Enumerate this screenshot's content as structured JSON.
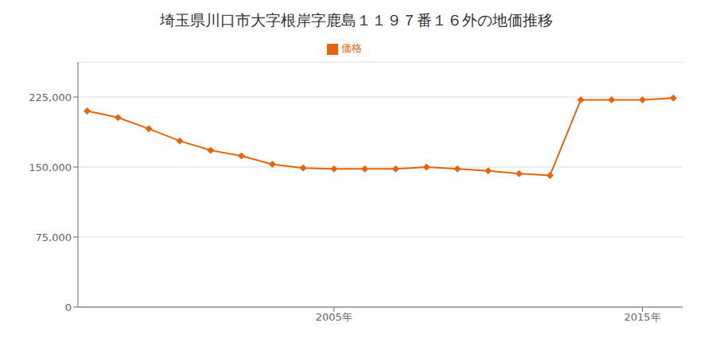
{
  "chart_data": {
    "type": "line",
    "title": "埼玉県川口市大字根岸字鹿島１１９７番１６外の地価推移",
    "x": [
      1997,
      1998,
      1999,
      2000,
      2001,
      2002,
      2003,
      2004,
      2005,
      2006,
      2007,
      2008,
      2009,
      2010,
      2011,
      2012,
      2013,
      2014,
      2015,
      2016
    ],
    "series": [
      {
        "name": "価格",
        "color": "#E8640A",
        "marker": "diamond",
        "values": [
          210000,
          203000,
          191000,
          178000,
          168000,
          162000,
          153000,
          149000,
          148000,
          148000,
          148000,
          150000,
          148000,
          146000,
          143000,
          141000,
          222000,
          222000,
          222000,
          224000
        ]
      }
    ],
    "xlim": [
      1996.7,
      2016.3
    ],
    "xticks": [
      {
        "value": 2005,
        "label": "2005年"
      },
      {
        "value": 2015,
        "label": "2015年"
      }
    ],
    "ylim": [
      0,
      262500
    ],
    "yticks": [
      0,
      {
        "value": 75000,
        "label": "75,000"
      },
      {
        "value": 150000,
        "label": "150,000"
      },
      {
        "value": 225000,
        "label": "225,000"
      }
    ],
    "grid": "y",
    "legend": "top"
  }
}
